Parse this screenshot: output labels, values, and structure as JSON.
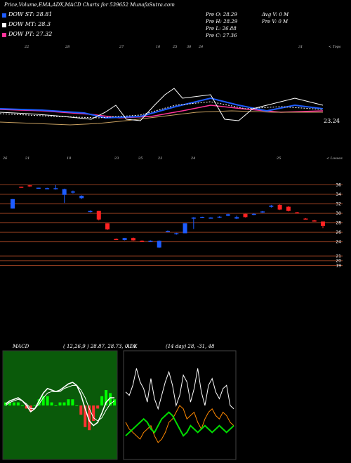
{
  "header": {
    "title": "Price,Volume,EMA,ADX,MACD Charts for 539652 MunafaSutra.com",
    "legend": [
      {
        "label": "DOW ST: 28.81",
        "color": "#1e5cff"
      },
      {
        "label": "DOW MT: 28.3",
        "color": "#ffffff"
      },
      {
        "label": "DOW PT: 27.32",
        "color": "#ff3399"
      }
    ],
    "stats": [
      "Pre  O: 28.29",
      "Pre  H: 28.29",
      "Pre  L: 26.88",
      "Pre  C: 27.36",
      "Avg V: 0  M",
      "Pre  V: 0  M"
    ]
  },
  "upper_panel": {
    "top_dates": [
      "22",
      "28",
      "27",
      "10",
      "25",
      "30",
      "24",
      "31",
      "< Tops"
    ],
    "bottom_dates": [
      "26",
      "21",
      "19",
      "23",
      "25",
      "23",
      "24",
      "25",
      "< Losses"
    ],
    "ema_label": "23.24"
  },
  "chart_data": [
    {
      "type": "candlestick",
      "title": "",
      "ylim": [
        17,
        38
      ],
      "y_ticks": [
        36,
        34,
        32,
        30,
        28,
        26,
        24,
        21,
        20,
        19
      ],
      "candles": [
        {
          "o": 33,
          "c": 31,
          "h": 33,
          "l": 31,
          "dir": "up"
        },
        {
          "o": 35.6,
          "c": 35.4,
          "h": 35.6,
          "l": 35.4,
          "dir": "down"
        },
        {
          "o": 35.9,
          "c": 35.7,
          "h": 36,
          "l": 35.6,
          "dir": "down"
        },
        {
          "o": 35.4,
          "c": 35.3,
          "h": 35.4,
          "l": 35.2,
          "dir": "up"
        },
        {
          "o": 35.3,
          "c": 35.2,
          "h": 35.4,
          "l": 35.1,
          "dir": "up"
        },
        {
          "o": 35.1,
          "c": 35.3,
          "h": 36,
          "l": 35,
          "dir": "up"
        },
        {
          "o": 35.1,
          "c": 33.9,
          "h": 35.2,
          "l": 32.2,
          "dir": "up"
        },
        {
          "o": 34.6,
          "c": 34.4,
          "h": 34.8,
          "l": 34.2,
          "dir": "up"
        },
        {
          "o": 33.7,
          "c": 33.2,
          "h": 33.8,
          "l": 33,
          "dir": "up"
        },
        {
          "o": 30.5,
          "c": 30.3,
          "h": 30.6,
          "l": 30.2,
          "dir": "up"
        },
        {
          "o": 30.5,
          "c": 28.7,
          "h": 30.5,
          "l": 28.5,
          "dir": "down"
        },
        {
          "o": 27.9,
          "c": 26.6,
          "h": 27.9,
          "l": 26.5,
          "dir": "down"
        },
        {
          "o": 24.6,
          "c": 24.5,
          "h": 24.7,
          "l": 24.4,
          "dir": "down"
        },
        {
          "o": 24.8,
          "c": 24.4,
          "h": 24.8,
          "l": 24.3,
          "dir": "up"
        },
        {
          "o": 24.8,
          "c": 24.3,
          "h": 24.9,
          "l": 24.2,
          "dir": "down"
        },
        {
          "o": 24.2,
          "c": 24.1,
          "h": 24.3,
          "l": 24,
          "dir": "down"
        },
        {
          "o": 24.2,
          "c": 24.1,
          "h": 24.3,
          "l": 24,
          "dir": "up"
        },
        {
          "o": 24.2,
          "c": 22.8,
          "h": 24.3,
          "l": 22.7,
          "dir": "up"
        },
        {
          "o": 26.3,
          "c": 26.1,
          "h": 26.4,
          "l": 26,
          "dir": "up"
        },
        {
          "o": 25.8,
          "c": 25.6,
          "h": 25.9,
          "l": 25.5,
          "dir": "up"
        },
        {
          "o": 25.8,
          "c": 27.9,
          "h": 27.9,
          "l": 25.8,
          "dir": "up"
        },
        {
          "o": 29.1,
          "c": 29,
          "h": 29.2,
          "l": 26.7,
          "dir": "up"
        },
        {
          "o": 29.2,
          "c": 29.1,
          "h": 29.3,
          "l": 29,
          "dir": "up"
        },
        {
          "o": 29.1,
          "c": 29,
          "h": 29.2,
          "l": 28.9,
          "dir": "up"
        },
        {
          "o": 29.3,
          "c": 29.1,
          "h": 29.4,
          "l": 29,
          "dir": "up"
        },
        {
          "o": 29.8,
          "c": 29.5,
          "h": 29.9,
          "l": 29.4,
          "dir": "up"
        },
        {
          "o": 29.2,
          "c": 28.9,
          "h": 29.5,
          "l": 28.8,
          "dir": "up"
        },
        {
          "o": 29.9,
          "c": 29.2,
          "h": 29.9,
          "l": 29.1,
          "dir": "down"
        },
        {
          "o": 29.9,
          "c": 29.7,
          "h": 30,
          "l": 29.6,
          "dir": "up"
        },
        {
          "o": 30.4,
          "c": 30.2,
          "h": 30.5,
          "l": 30.1,
          "dir": "up"
        },
        {
          "o": 31.6,
          "c": 31.4,
          "h": 31.8,
          "l": 31.2,
          "dir": "up"
        },
        {
          "o": 31.8,
          "c": 30.8,
          "h": 31.9,
          "l": 30.7,
          "dir": "down"
        },
        {
          "o": 31.4,
          "c": 30.5,
          "h": 31.5,
          "l": 30.4,
          "dir": "down"
        },
        {
          "o": 30.2,
          "c": 30.1,
          "h": 30.3,
          "l": 30,
          "dir": "down"
        },
        {
          "o": 28.9,
          "c": 28.8,
          "h": 29,
          "l": 28.7,
          "dir": "down"
        },
        {
          "o": 28.5,
          "c": 28.4,
          "h": 28.6,
          "l": 28.3,
          "dir": "down"
        },
        {
          "o": 28.29,
          "c": 27.36,
          "h": 28.29,
          "l": 26.88,
          "dir": "down"
        }
      ]
    },
    {
      "type": "line",
      "title": "MACD",
      "params": "( 12,26,9 ) 28.87,  28.73,  0.14",
      "series": [
        {
          "values": [
            0.1,
            0.3,
            0.4,
            0.5,
            0.3,
            0.0,
            -0.4,
            -0.2,
            0.3,
            0.8,
            1.1,
            1.0,
            0.9,
            1.0,
            1.2,
            1.4,
            1.5,
            1.3,
            0.7,
            -0.2,
            -1.0,
            -1.3,
            -1.1,
            -0.5,
            0.2,
            0.5,
            0.5
          ]
        },
        {
          "values": [
            0.0,
            0.2,
            0.3,
            0.4,
            0.3,
            0.1,
            -0.2,
            -0.2,
            0.1,
            0.5,
            0.8,
            0.9,
            0.9,
            0.9,
            1.1,
            1.2,
            1.3,
            1.3,
            1.0,
            0.5,
            -0.2,
            -0.8,
            -1.0,
            -0.8,
            -0.3,
            0.1,
            0.3
          ]
        }
      ],
      "histogram": [
        0.1,
        0.1,
        0.1,
        0.1,
        0.0,
        -0.1,
        -0.2,
        0.0,
        0.2,
        0.3,
        0.3,
        0.1,
        0.0,
        0.1,
        0.1,
        0.2,
        0.2,
        0.0,
        -0.3,
        -0.7,
        -0.8,
        -0.5,
        -0.1,
        0.3,
        0.5,
        0.4,
        0.2
      ]
    },
    {
      "type": "line",
      "title": "ADX",
      "params": "(14  day) 28,  -31,  48",
      "series": [
        {
          "color": "#ffffff",
          "values": [
            38,
            36,
            42,
            52,
            44,
            40,
            32,
            46,
            34,
            28,
            36,
            44,
            50,
            42,
            30,
            36,
            48,
            44,
            32,
            40,
            52,
            38,
            30,
            42,
            46,
            38,
            34,
            40,
            42,
            30,
            28
          ]
        },
        {
          "color": "#ff8800",
          "values": [
            20,
            16,
            14,
            12,
            10,
            14,
            16,
            18,
            12,
            8,
            10,
            14,
            20,
            22,
            26,
            30,
            28,
            22,
            24,
            26,
            20,
            16,
            22,
            26,
            28,
            24,
            22,
            26,
            24,
            20,
            18
          ]
        },
        {
          "color": "#00dd00",
          "values": [
            12,
            14,
            16,
            18,
            20,
            22,
            20,
            16,
            14,
            18,
            22,
            24,
            26,
            24,
            20,
            16,
            12,
            14,
            18,
            16,
            14,
            16,
            18,
            16,
            14,
            16,
            18,
            16,
            14,
            16,
            18
          ]
        }
      ]
    }
  ]
}
